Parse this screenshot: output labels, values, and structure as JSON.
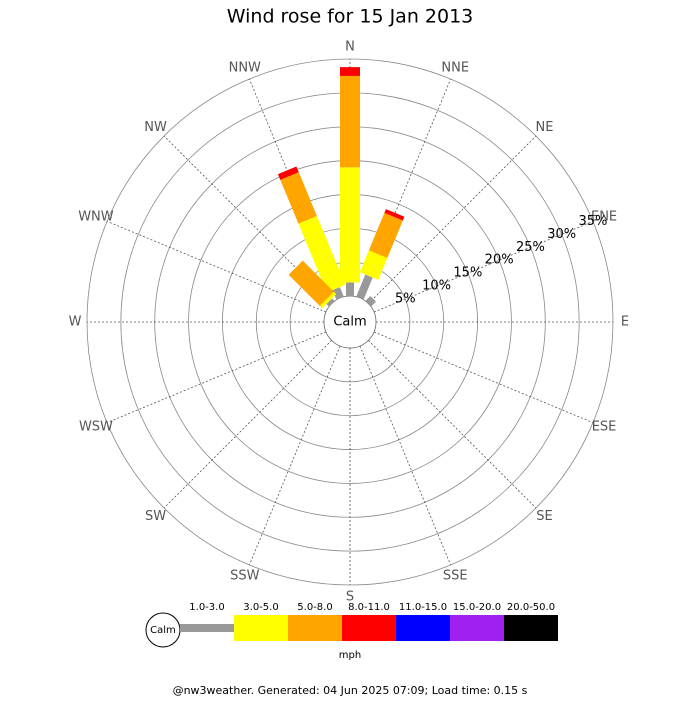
{
  "chart_data": {
    "type": "windrose",
    "title": "Wind rose for 15 Jan 2013",
    "calm_label": "Calm",
    "unit": "mph",
    "footer": "@nw3weather. Generated: 04 Jun 2025 07:09; Load time: 0.15 s",
    "categories": [
      "N",
      "NNE",
      "NE",
      "ENE",
      "E",
      "ESE",
      "SE",
      "SSE",
      "S",
      "SSW",
      "SW",
      "WSW",
      "W",
      "WNW",
      "NW",
      "NNW"
    ],
    "rlim": [
      0,
      35
    ],
    "rticks": [
      {
        "value": 5,
        "label": "5%"
      },
      {
        "value": 10,
        "label": "10%"
      },
      {
        "value": 15,
        "label": "15%"
      },
      {
        "value": 20,
        "label": "20%"
      },
      {
        "value": 25,
        "label": "25%"
      },
      {
        "value": 30,
        "label": "30%"
      },
      {
        "value": 35,
        "label": "35%"
      }
    ],
    "series": [
      {
        "name": "1.0-3.0",
        "color": "#999999",
        "values": [
          2,
          3.5,
          1,
          0,
          0,
          0,
          0,
          0,
          0,
          0,
          0,
          0,
          0,
          0,
          0.5,
          1.5
        ]
      },
      {
        "name": "3.0-5.0",
        "color": "#ffff00",
        "values": [
          17,
          3.5,
          0,
          0,
          0,
          0,
          0,
          0,
          0,
          0,
          0,
          0,
          0,
          0,
          0.5,
          11
        ]
      },
      {
        "name": "5.0-8.0",
        "color": "#ffa500",
        "values": [
          13.5,
          6,
          0,
          0,
          0,
          0,
          0,
          0,
          0,
          0,
          0,
          0,
          0,
          0,
          6.5,
          7
        ]
      },
      {
        "name": "8.0-11.0",
        "color": "#ff0000",
        "values": [
          1.3,
          0.6,
          0,
          0,
          0,
          0,
          0,
          0,
          0,
          0,
          0,
          0,
          0,
          0,
          0,
          0.9
        ]
      },
      {
        "name": "11.0-15.0",
        "color": "#0000ff",
        "values": [
          0,
          0,
          0,
          0,
          0,
          0,
          0,
          0,
          0,
          0,
          0,
          0,
          0,
          0,
          0,
          0
        ]
      },
      {
        "name": "15.0-20.0",
        "color": "#a020f0",
        "values": [
          0,
          0,
          0,
          0,
          0,
          0,
          0,
          0,
          0,
          0,
          0,
          0,
          0,
          0,
          0,
          0
        ]
      },
      {
        "name": "20.0-50.0",
        "color": "#000000",
        "values": [
          0,
          0,
          0,
          0,
          0,
          0,
          0,
          0,
          0,
          0,
          0,
          0,
          0,
          0,
          0,
          0
        ]
      }
    ]
  }
}
